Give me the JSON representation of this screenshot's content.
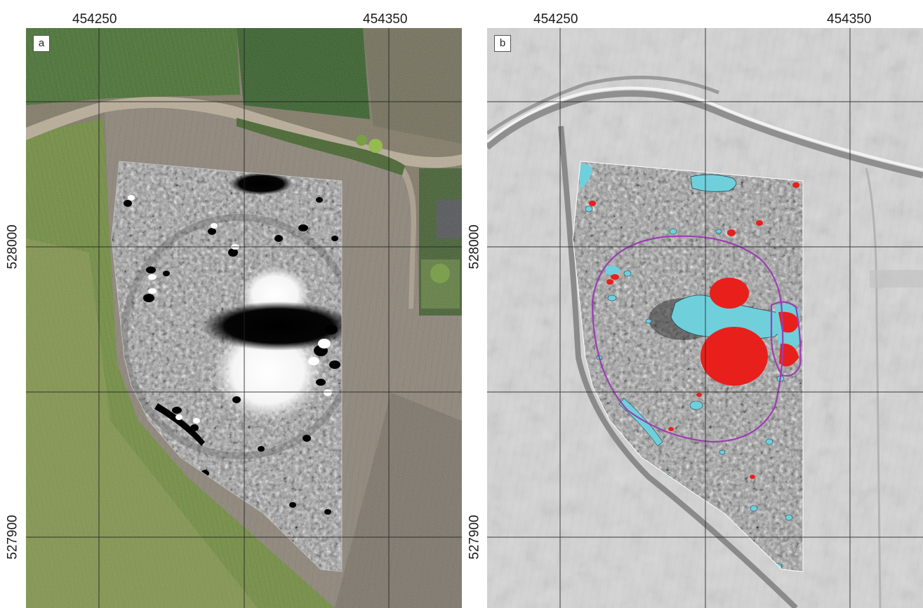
{
  "panels": [
    {
      "label": "a",
      "basemap": "aerial-photograph",
      "overlay": "magnetometry-greyscale"
    },
    {
      "label": "b",
      "basemap": "lidar-hillshade",
      "overlay": "magnetometry-classified"
    }
  ],
  "grid": {
    "eastings": [
      "454250",
      "454350"
    ],
    "northings": [
      "528000",
      "527900"
    ]
  },
  "colors": {
    "positive_anomaly": "#e8201c",
    "negative_anomaly": "#6fd0dc",
    "interpretation_outline": "#9b3fb0",
    "grid_line": "#222222"
  }
}
